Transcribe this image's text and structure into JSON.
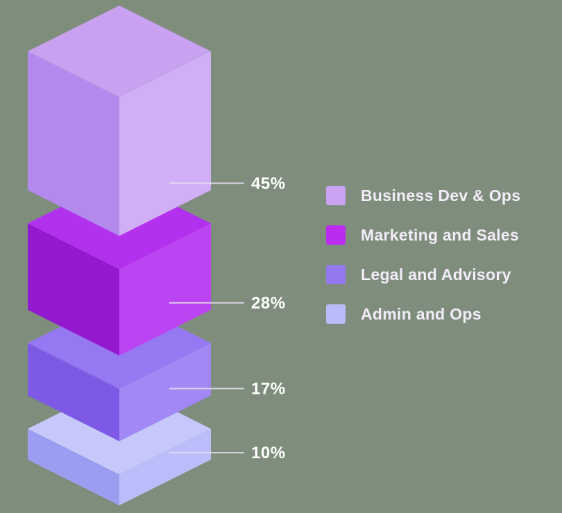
{
  "style": {
    "background": "#7f8e7c",
    "value_label_color": "#ffffff",
    "legend_text_color": "#f2edf8",
    "leader_line_color": "#e6ddf3"
  },
  "chart_data": {
    "type": "bar",
    "variant": "isometric-3d-stacked-column",
    "title": "",
    "xlabel": "",
    "ylabel": "",
    "unit": "%",
    "legend_position": "right",
    "categories": [
      "Business Dev & Ops",
      "Marketing and Sales",
      "Legal and Advisory",
      "Admin and Ops"
    ],
    "values": [
      45,
      28,
      17,
      10
    ],
    "value_labels": [
      "45%",
      "28%",
      "17%",
      "10%"
    ],
    "segments": [
      {
        "label": "Business Dev & Ops",
        "value": 45,
        "value_label": "45%",
        "color_top": "#c8a2f1",
        "color_left": "#b389ec",
        "color_right": "#d1aff6",
        "legend_color": "#c9a3f1"
      },
      {
        "label": "Marketing and Sales",
        "value": 28,
        "value_label": "28%",
        "color_top": "#b231ef",
        "color_left": "#9319cf",
        "color_right": "#bc45f3",
        "legend_color": "#ba2cf1"
      },
      {
        "label": "Legal and Advisory",
        "value": 17,
        "value_label": "17%",
        "color_top": "#9678f2",
        "color_left": "#7d59e6",
        "color_right": "#a188f5",
        "legend_color": "#9478f0"
      },
      {
        "label": "Admin and Ops",
        "value": 10,
        "value_label": "10%",
        "color_top": "#c6c8fb",
        "color_left": "#9b9ef0",
        "color_right": "#babdfa",
        "legend_color": "#b9bcf9"
      }
    ]
  }
}
